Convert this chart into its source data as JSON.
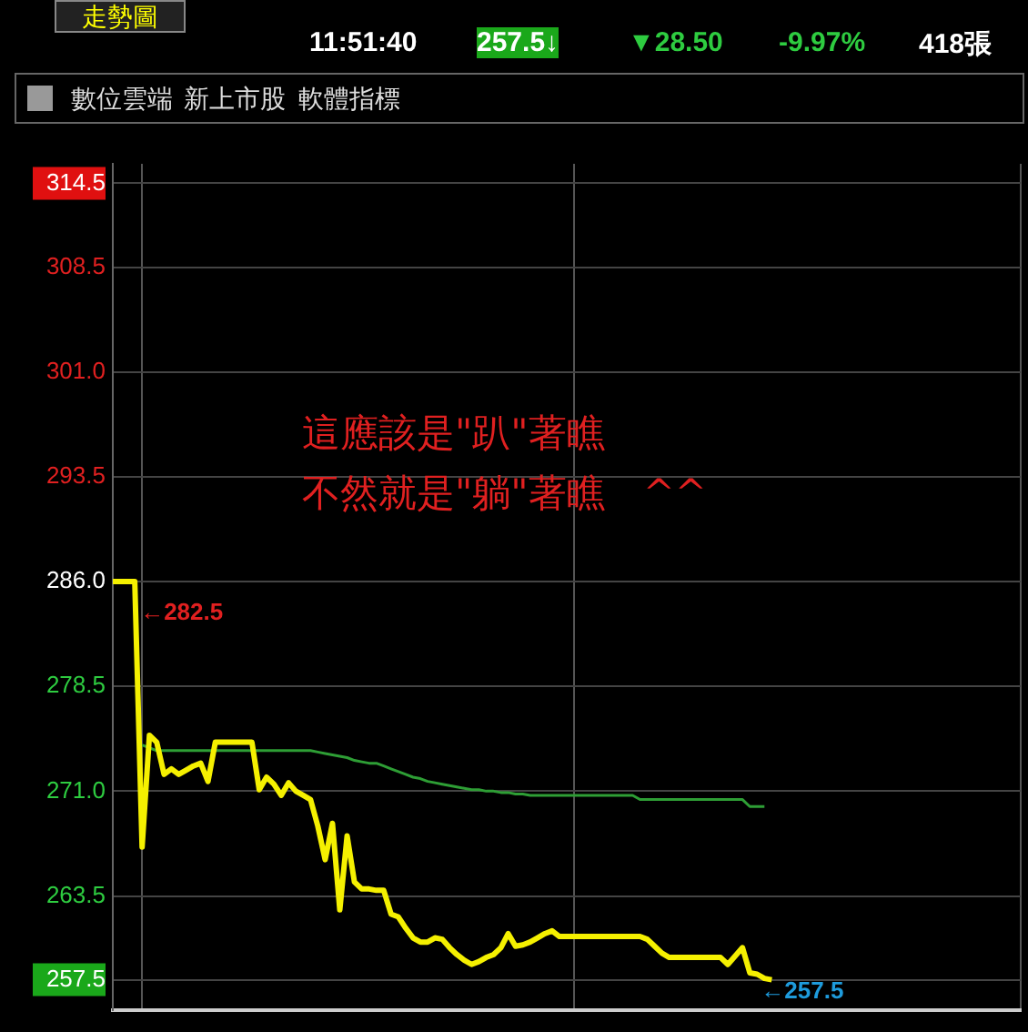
{
  "chart_data": {
    "type": "line",
    "title": "走勢圖",
    "categories": [
      null,
      null,
      null,
      null,
      null,
      null,
      null,
      null,
      null,
      null,
      null,
      null,
      null,
      null,
      null,
      null,
      null,
      null,
      null,
      null,
      null,
      null,
      null,
      null,
      null,
      null,
      null,
      null,
      null,
      null,
      null,
      null,
      null,
      null,
      null,
      null,
      null,
      null,
      null,
      null,
      null,
      null,
      null,
      null,
      null,
      null,
      null,
      null,
      null,
      null,
      null,
      null,
      null,
      null,
      null,
      null,
      null,
      null,
      null,
      null,
      null,
      null,
      null,
      null,
      null,
      null,
      null,
      null,
      null,
      null,
      null,
      null,
      null,
      null,
      null,
      null,
      null,
      null,
      null,
      null,
      null,
      null,
      null,
      null,
      null,
      null,
      null,
      null,
      null,
      null,
      null,
      null,
      null,
      null,
      null,
      null,
      null,
      null,
      null,
      null,
      null,
      null,
      null,
      null,
      null,
      null,
      null,
      null,
      null,
      null,
      null,
      null,
      null,
      null,
      null,
      null,
      null,
      null,
      null,
      null,
      null,
      null,
      null,
      null,
      null
    ],
    "series": [
      {
        "color": "#f5f000",
        "values": [
          286,
          286,
          286,
          286,
          267.0,
          275.0,
          274.5,
          272.2,
          272.6,
          272.2,
          272.5,
          272.8,
          273.0,
          271.7,
          274.5,
          274.5,
          274.5,
          274.5,
          274.5,
          274.5,
          271.1,
          272.0,
          271.5,
          270.7,
          271.6,
          271.0,
          270.7,
          270.4,
          268.5,
          266.1,
          268.7,
          262.5,
          267.8,
          264.5,
          264.0,
          264.0,
          263.9,
          263.9,
          262.2,
          262.0,
          261.2,
          260.5,
          260.2,
          260.2,
          260.5,
          260.4,
          259.8,
          259.3,
          258.9,
          258.6,
          258.8,
          259.1,
          259.3,
          259.8,
          260.8,
          259.9,
          260.0,
          260.2,
          260.5,
          260.8,
          261.0,
          260.6,
          260.6,
          260.6,
          260.6,
          260.6,
          260.6,
          260.6,
          260.6,
          260.6,
          260.6,
          260.6,
          260.6,
          260.4,
          259.9,
          259.4,
          259.1,
          259.1,
          259.1,
          259.1,
          259.1,
          259.1,
          259.1,
          259.1,
          258.6,
          259.2,
          259.8,
          258.0,
          257.9,
          257.6,
          257.5,
          null,
          null,
          null,
          null,
          null,
          null,
          null,
          null,
          null,
          null,
          null,
          null,
          null,
          null,
          null,
          null,
          null,
          null,
          null,
          null,
          null,
          null,
          null,
          null,
          null,
          null,
          null,
          null,
          null,
          null,
          null,
          null,
          null,
          null
        ]
      },
      {
        "color": "#2e9e35",
        "values": [
          null,
          null,
          null,
          null,
          274.3,
          274.1,
          273.9,
          273.9,
          273.9,
          273.9,
          273.9,
          273.9,
          273.9,
          273.9,
          273.9,
          273.9,
          273.9,
          273.9,
          273.9,
          273.9,
          273.9,
          273.9,
          273.9,
          273.9,
          273.9,
          273.9,
          273.9,
          273.9,
          273.8,
          273.7,
          273.6,
          273.5,
          273.4,
          273.2,
          273.1,
          273.0,
          273.0,
          272.8,
          272.6,
          272.4,
          272.2,
          272.0,
          271.9,
          271.7,
          271.6,
          271.5,
          271.4,
          271.3,
          271.2,
          271.1,
          271.1,
          271.0,
          271.0,
          270.9,
          270.9,
          270.8,
          270.8,
          270.7,
          270.7,
          270.7,
          270.7,
          270.7,
          270.7,
          270.7,
          270.7,
          270.7,
          270.7,
          270.7,
          270.7,
          270.7,
          270.7,
          270.7,
          270.4,
          270.4,
          270.4,
          270.4,
          270.4,
          270.4,
          270.4,
          270.4,
          270.4,
          270.4,
          270.4,
          270.4,
          270.4,
          270.4,
          270.4,
          269.9,
          269.9,
          269.9,
          null,
          null,
          null,
          null,
          null,
          null,
          null,
          null,
          null,
          null,
          null,
          null,
          null,
          null,
          null,
          null,
          null,
          null,
          null,
          null,
          null,
          null,
          null,
          null,
          null,
          null,
          null,
          null,
          null,
          null,
          null,
          null,
          null,
          null,
          null
        ]
      }
    ],
    "ylim": [
      255.3,
      315.9
    ],
    "yticks": [
      314.5,
      308.5,
      {
        "value": 301,
        "label": "301.0"
      },
      293.5,
      {
        "value": 286,
        "label": "286.0"
      },
      278.5,
      {
        "value": 271,
        "label": "271.0"
      },
      263.5,
      257.5
    ],
    "grid": true,
    "legend": false,
    "marker": "none",
    "line_style": "solid",
    "annotations": [
      "11:51:40",
      "257.5↓",
      "▼28.50",
      "-9.97%",
      "418張",
      "數位雲端",
      "新上市股",
      "軟體指標",
      "這應該是\"趴\"著瞧",
      "不然就是\"躺\"著瞧　^^",
      "←282.5",
      "←257.5"
    ]
  }
}
